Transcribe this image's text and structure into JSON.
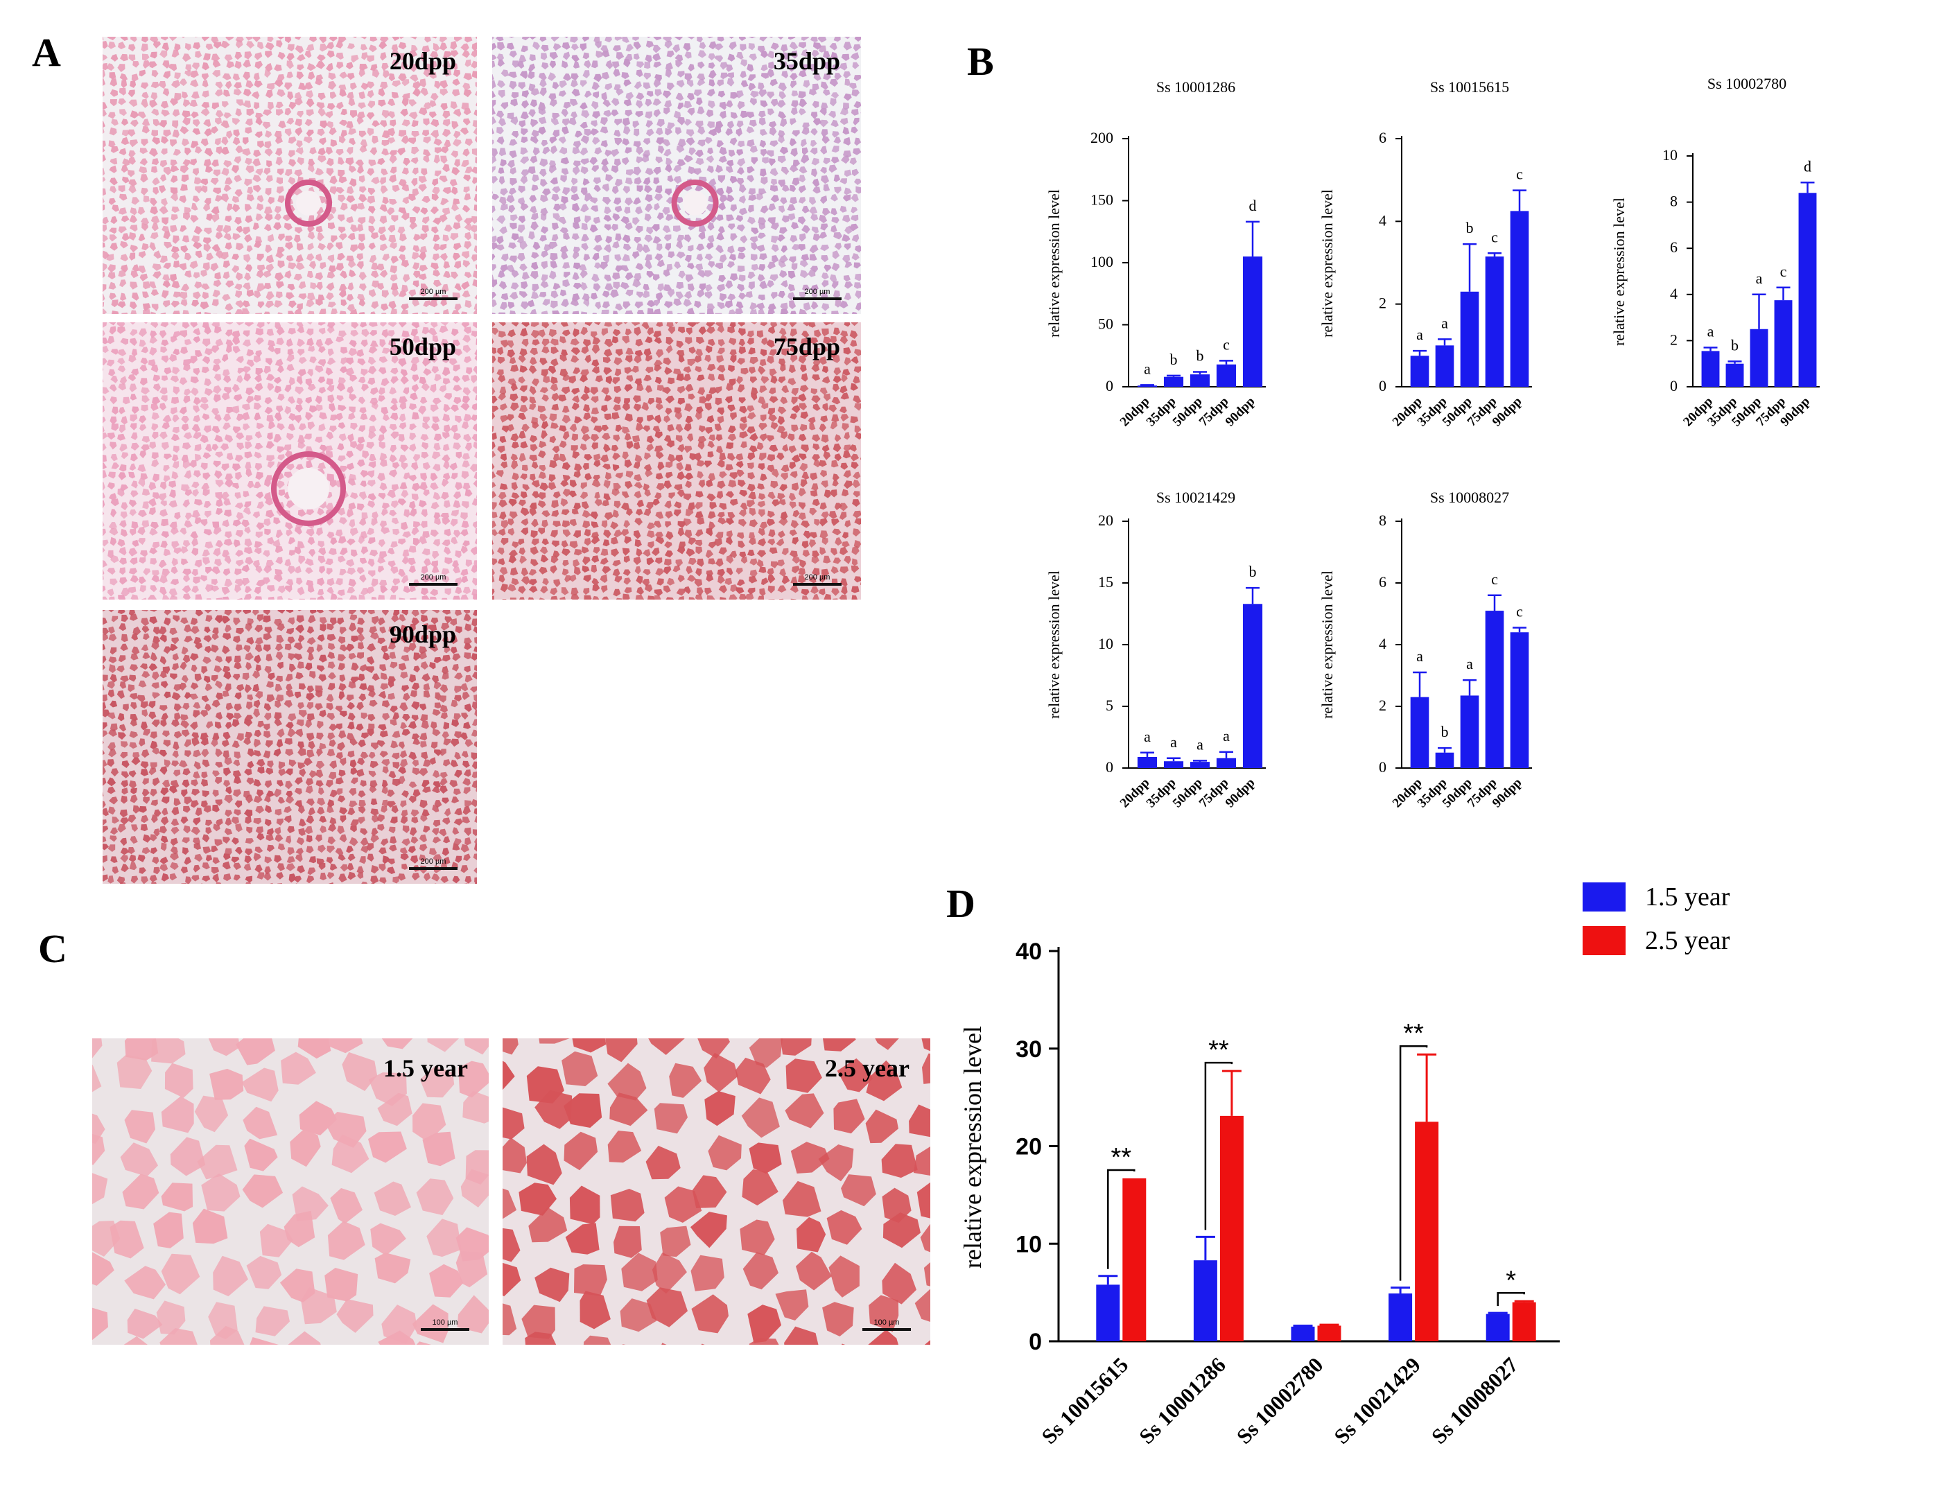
{
  "panels": {
    "a": "A",
    "b": "B",
    "c": "C",
    "d": "D"
  },
  "micrographs": {
    "stages": [
      {
        "label": "20dpp",
        "scale": "200 µm",
        "tone": "#e89ab4",
        "bg": "#f2eef1"
      },
      {
        "label": "35dpp",
        "scale": "200 µm",
        "tone": "#c697c8",
        "bg": "#f1f1f4"
      },
      {
        "label": "50dpp",
        "scale": "200 µm",
        "tone": "#eba0bd",
        "bg": "#f6e4ec"
      },
      {
        "label": "75dpp",
        "scale": "200 µm",
        "tone": "#cc5a63",
        "bg": "#ecd0d6"
      },
      {
        "label": "90dpp",
        "scale": "200 µm",
        "tone": "#c85663",
        "bg": "#e9d0d6"
      }
    ],
    "adults": [
      {
        "label": "1.5 year",
        "scale": "100 µm",
        "tone": "#f0a8b4",
        "bg": "#ebe4e6"
      },
      {
        "label": "2.5 year",
        "scale": "100 µm",
        "tone": "#d65358",
        "bg": "#ece1e4"
      }
    ]
  },
  "colors": {
    "blue": "#1a1aee",
    "red": "#ee1111"
  },
  "chart_data": [
    {
      "type": "bar",
      "title": "Ss 10001286",
      "ylabel": "relative expression level",
      "categories": [
        "20dpp",
        "35dpp",
        "50dpp",
        "75dpp",
        "90dpp"
      ],
      "values": [
        1,
        8,
        10,
        18,
        105
      ],
      "errors": [
        0.5,
        1,
        2,
        3,
        28
      ],
      "letters": [
        "a",
        "b",
        "b",
        "c",
        "d"
      ],
      "ylim": [
        0,
        200
      ],
      "ticks": [
        0,
        50,
        100,
        150,
        200
      ],
      "tick_labels": [
        "0",
        "50",
        "100",
        "150",
        "200"
      ]
    },
    {
      "type": "bar",
      "title": "Ss 10015615",
      "ylabel": "relative expression level",
      "categories": [
        "20dpp",
        "35dpp",
        "50dpp",
        "75dpp",
        "90dpp"
      ],
      "values": [
        0.75,
        1.0,
        2.3,
        3.15,
        4.25
      ],
      "errors": [
        0.12,
        0.15,
        1.15,
        0.08,
        0.5
      ],
      "letters": [
        "a",
        "a",
        "b",
        "c",
        "c"
      ],
      "ylim": [
        0,
        6
      ],
      "ticks": [
        0,
        2,
        4,
        6
      ],
      "tick_labels": [
        "0",
        "2",
        "4",
        "6"
      ]
    },
    {
      "type": "bar",
      "title": "Ss 10002780",
      "ylabel": "relative expression level",
      "categories": [
        "20dpp",
        "35dpp",
        "50dpp",
        "75dpp",
        "90dpp"
      ],
      "values": [
        1.55,
        1.0,
        2.5,
        3.75,
        8.4
      ],
      "errors": [
        0.15,
        0.1,
        1.5,
        0.55,
        0.45
      ],
      "letters": [
        "a",
        "b",
        "a",
        "c",
        "d"
      ],
      "ylim": [
        0,
        10
      ],
      "ticks": [
        0,
        2,
        4,
        6,
        8,
        10
      ],
      "tick_labels": [
        "0",
        "2",
        "4",
        "6",
        "8",
        "10"
      ]
    },
    {
      "type": "bar",
      "title": "Ss 10021429",
      "ylabel": "relative expression level",
      "categories": [
        "20dpp",
        "35dpp",
        "50dpp",
        "75dpp",
        "90dpp"
      ],
      "values": [
        0.9,
        0.55,
        0.5,
        0.8,
        13.3
      ],
      "errors": [
        0.35,
        0.25,
        0.1,
        0.5,
        1.3
      ],
      "letters": [
        "a",
        "a",
        "a",
        "a",
        "b"
      ],
      "ylim": [
        0,
        20
      ],
      "ticks": [
        0,
        5,
        10,
        15,
        20
      ],
      "tick_labels": [
        "0",
        "5",
        "10",
        "15",
        "20"
      ]
    },
    {
      "type": "bar",
      "title": "Ss 10008027",
      "ylabel": "relative expression level",
      "categories": [
        "20dpp",
        "35dpp",
        "50dpp",
        "75dpp",
        "90dpp"
      ],
      "values": [
        2.3,
        0.5,
        2.35,
        5.1,
        4.4
      ],
      "errors": [
        0.8,
        0.15,
        0.5,
        0.5,
        0.15
      ],
      "letters": [
        "a",
        "b",
        "a",
        "c",
        "c"
      ],
      "ylim": [
        0,
        8
      ],
      "ticks": [
        0,
        2,
        4,
        6,
        8
      ],
      "tick_labels": [
        "0",
        "2",
        "4",
        "6",
        "8"
      ]
    },
    {
      "type": "bar",
      "ylabel": "relative expression level",
      "categories": [
        "Ss 10015615",
        "Ss 10001286",
        "Ss 10002780",
        "Ss 10021429",
        "Ss 10008027"
      ],
      "series": [
        {
          "name": "1.5 year",
          "values": [
            5.8,
            8.3,
            1.5,
            4.9,
            2.8
          ],
          "errors": [
            0.9,
            2.4,
            0.1,
            0.6,
            0.1
          ]
        },
        {
          "name": "2.5 year",
          "values": [
            16.7,
            23.1,
            1.6,
            22.5,
            4.0
          ],
          "errors": [
            0,
            4.6,
            0.1,
            6.9,
            0.1
          ]
        }
      ],
      "significance": [
        "**",
        "**",
        "",
        "**",
        "*"
      ],
      "ylim": [
        0,
        40
      ],
      "ticks": [
        0,
        10,
        20,
        30,
        40
      ],
      "tick_labels": [
        "0",
        "10",
        "20",
        "30",
        "40"
      ],
      "legend": "top-right"
    }
  ]
}
